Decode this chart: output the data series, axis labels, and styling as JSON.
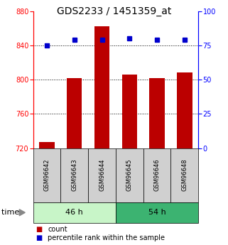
{
  "title": "GDS2233 / 1451359_at",
  "samples": [
    "GSM96642",
    "GSM96643",
    "GSM96644",
    "GSM96645",
    "GSM96646",
    "GSM96648"
  ],
  "counts": [
    727,
    802,
    862,
    806,
    802,
    808
  ],
  "percentiles": [
    75,
    79,
    79,
    80,
    79,
    79
  ],
  "groups": [
    {
      "label": "46 h",
      "n": 3,
      "color_light": "#c8f5c8",
      "color_dark": "#90ee90"
    },
    {
      "label": "54 h",
      "n": 3,
      "color_light": "#6fdc6f",
      "color_dark": "#3cb371"
    }
  ],
  "ylim_left": [
    720,
    880
  ],
  "ylim_right": [
    0,
    100
  ],
  "yticks_left": [
    720,
    760,
    800,
    840,
    880
  ],
  "yticks_right": [
    0,
    25,
    50,
    75,
    100
  ],
  "bar_color": "#bb0000",
  "dot_color": "#0000cc",
  "bar_width": 0.55,
  "base_value": 720,
  "grid_values": [
    760,
    800,
    840
  ],
  "legend_count_label": "count",
  "legend_pct_label": "percentile rank within the sample",
  "title_fontsize": 10,
  "tick_fontsize": 7,
  "sample_fontsize": 6,
  "group_fontsize": 8,
  "legend_fontsize": 7
}
